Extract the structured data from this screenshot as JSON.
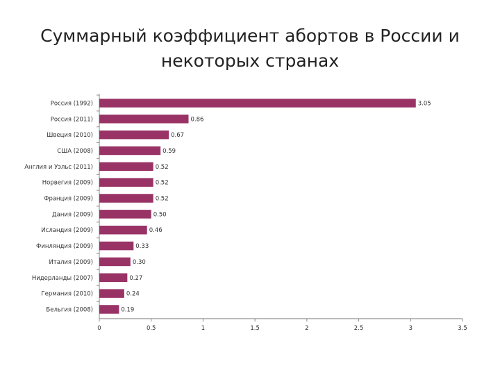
{
  "title_lines": [
    "Суммарный коэффициент абортов в России и",
    "некоторых странах"
  ],
  "chart_data": {
    "type": "bar",
    "orientation": "horizontal",
    "title": "Суммарный коэффициент абортов в России и некоторых странах",
    "categories": [
      "Россия (1992)",
      "Россия (2011)",
      "Швеция (2010)",
      "США (2008)",
      "Англия и Уэльс (2011)",
      "Норвегия (2009)",
      "Франция (2009)",
      "Дания (2009)",
      "Исландия (2009)",
      "Финляндия (2009)",
      "Италия (2009)",
      "Нидерланды (2007)",
      "Германия (2010)",
      "Бельгия (2008)"
    ],
    "values": [
      3.05,
      0.86,
      0.67,
      0.59,
      0.52,
      0.52,
      0.52,
      0.5,
      0.46,
      0.33,
      0.3,
      0.27,
      0.24,
      0.19
    ],
    "data_labels": [
      "3.05",
      "0.86",
      "0.67",
      "0.59",
      "0.52",
      "0.52",
      "0.52",
      "0.50",
      "0.46",
      "0.33",
      "0.30",
      "0.27",
      "0.24",
      "0.19"
    ],
    "xlim": [
      0,
      3.5
    ],
    "xticks": [
      "0",
      "0.5",
      "1",
      "1.5",
      "2",
      "2.5",
      "3",
      "3.5"
    ],
    "bar_color": "#993366",
    "grid": false,
    "legend": "none"
  }
}
